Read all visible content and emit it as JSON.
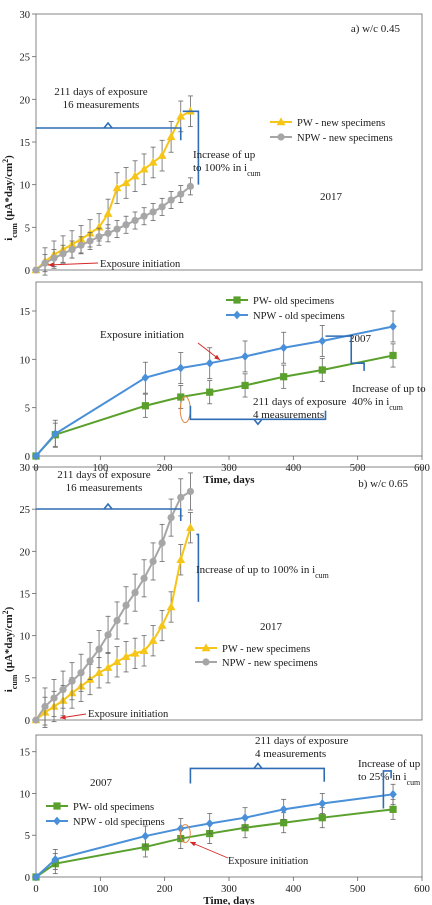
{
  "chart_data": [
    {
      "type": "line",
      "panel": "a",
      "panel_label": "a) w/c 0.45",
      "group": "2017",
      "ylabel": "icum (μA*day/cm²)",
      "ylabel_main": "i",
      "ylabel_sub": "cum",
      "ylabel_rest": " (μA*day/cm",
      "ylabel_sup": "2",
      "ylabel_end": ")",
      "xlim": [
        0,
        600
      ],
      "ylim": [
        0,
        30
      ],
      "yticks": [
        0,
        5,
        10,
        15,
        20,
        25,
        30
      ],
      "grid": false,
      "legend_position": "right",
      "series": [
        {
          "name": "PW - new specimens",
          "color": "#f5c518",
          "marker": "triangle",
          "points": [
            [
              0,
              0
            ],
            [
              14,
              1.0
            ],
            [
              28,
              1.8
            ],
            [
              42,
              2.4
            ],
            [
              56,
              3.0
            ],
            [
              70,
              3.6
            ],
            [
              84,
              4.3
            ],
            [
              98,
              5.0
            ],
            [
              112,
              6.6
            ],
            [
              126,
              9.6
            ],
            [
              140,
              10.2
            ],
            [
              154,
              11.0
            ],
            [
              168,
              11.8
            ],
            [
              182,
              12.6
            ],
            [
              196,
              13.4
            ],
            [
              210,
              15.6
            ],
            [
              225,
              18.0
            ],
            [
              240,
              18.6
            ]
          ],
          "err": [
            0,
            1.6,
            1.6,
            1.6,
            1.6,
            1.6,
            1.6,
            1.6,
            1.7,
            1.8,
            1.8,
            1.8,
            1.8,
            1.8,
            1.8,
            1.8,
            1.8,
            1.8
          ]
        },
        {
          "name": "NPW - new specimens",
          "color": "#a6a6a6",
          "marker": "circle",
          "points": [
            [
              0,
              0
            ],
            [
              14,
              0.8
            ],
            [
              28,
              1.4
            ],
            [
              42,
              1.9
            ],
            [
              56,
              2.4
            ],
            [
              70,
              2.9
            ],
            [
              84,
              3.4
            ],
            [
              98,
              3.9
            ],
            [
              112,
              4.3
            ],
            [
              126,
              4.8
            ],
            [
              140,
              5.3
            ],
            [
              154,
              5.8
            ],
            [
              168,
              6.3
            ],
            [
              182,
              6.8
            ],
            [
              196,
              7.4
            ],
            [
              210,
              8.2
            ],
            [
              225,
              8.9
            ],
            [
              240,
              9.8
            ]
          ],
          "err": [
            0,
            1.0,
            1.0,
            1.0,
            1.0,
            1.0,
            1.0,
            1.0,
            1.0,
            1.0,
            1.0,
            1.0,
            1.0,
            1.0,
            1.0,
            1.0,
            1.0,
            1.0
          ]
        }
      ],
      "annotations": [
        {
          "lines": [
            "211 days of exposure",
            "16 measurements"
          ]
        },
        {
          "lines": [
            "Increase of up",
            "to 100% in i"
          ],
          "sub": "cum"
        },
        {
          "lines": [
            "Exposure initiation"
          ]
        }
      ]
    },
    {
      "type": "line",
      "panel": "a-bottom",
      "group": "2007",
      "xlabel": "Time, days",
      "xlim": [
        0,
        600
      ],
      "ylim": [
        0,
        18
      ],
      "yticks": [
        0,
        5,
        10,
        15
      ],
      "xticks": [
        0,
        100,
        200,
        300,
        400,
        500,
        600
      ],
      "grid": false,
      "legend_position": "top-center",
      "series": [
        {
          "name": "PW- old specimens",
          "color": "#5aa02c",
          "marker": "square",
          "points": [
            [
              0,
              0
            ],
            [
              30,
              2.2
            ],
            [
              170,
              5.2
            ],
            [
              225,
              6.1
            ],
            [
              270,
              6.6
            ],
            [
              325,
              7.3
            ],
            [
              385,
              8.2
            ],
            [
              445,
              8.9
            ],
            [
              555,
              10.4
            ]
          ],
          "err": [
            0,
            1.2,
            1.2,
            1.2,
            1.2,
            1.2,
            1.2,
            1.2,
            1.2
          ]
        },
        {
          "name": "NPW - old specimens",
          "color": "#4a90d9",
          "marker": "diamond",
          "points": [
            [
              0,
              0
            ],
            [
              30,
              2.3
            ],
            [
              170,
              8.1
            ],
            [
              225,
              9.1
            ],
            [
              270,
              9.6
            ],
            [
              325,
              10.3
            ],
            [
              385,
              11.2
            ],
            [
              445,
              11.9
            ],
            [
              555,
              13.4
            ]
          ],
          "err": [
            0,
            1.4,
            1.6,
            1.6,
            1.6,
            1.6,
            1.6,
            1.6,
            1.6
          ]
        }
      ],
      "annotations": [
        {
          "lines": [
            "Exposure initiation"
          ]
        },
        {
          "lines": [
            "211 days of exposure",
            "4 measurements"
          ]
        },
        {
          "lines": [
            "Increase of up to",
            "40% in i"
          ],
          "sub": "cum"
        }
      ]
    },
    {
      "type": "line",
      "panel": "b",
      "panel_label": "b)  w/c 0.65",
      "group": "2017",
      "ylabel": "icum (μA*day/cm²)",
      "ylabel_main": "i",
      "ylabel_sub": "cum",
      "ylabel_rest": " (μA*day/cm",
      "ylabel_sup": "2",
      "ylabel_end": ")",
      "xlim": [
        0,
        600
      ],
      "ylim": [
        0,
        30
      ],
      "yticks": [
        0,
        5,
        10,
        15,
        20,
        25,
        30
      ],
      "grid": false,
      "legend_position": "right",
      "series": [
        {
          "name": "PW - new specimens",
          "color": "#f5c518",
          "marker": "triangle",
          "points": [
            [
              0,
              0
            ],
            [
              14,
              0.9
            ],
            [
              28,
              1.6
            ],
            [
              42,
              2.3
            ],
            [
              56,
              3.2
            ],
            [
              70,
              4.0
            ],
            [
              84,
              4.8
            ],
            [
              98,
              5.6
            ],
            [
              112,
              6.2
            ],
            [
              126,
              6.9
            ],
            [
              140,
              7.5
            ],
            [
              154,
              7.9
            ],
            [
              168,
              8.2
            ],
            [
              182,
              9.4
            ],
            [
              196,
              11.2
            ],
            [
              210,
              13.4
            ],
            [
              225,
              19.0
            ],
            [
              240,
              22.8
            ]
          ],
          "err": [
            0,
            1.8,
            1.8,
            1.8,
            1.8,
            1.8,
            1.8,
            1.8,
            1.8,
            1.8,
            1.8,
            1.8,
            1.8,
            1.8,
            1.8,
            1.8,
            1.8,
            1.8
          ]
        },
        {
          "name": "NPW - new specimens",
          "color": "#a6a6a6",
          "marker": "circle",
          "points": [
            [
              0,
              0
            ],
            [
              14,
              1.6
            ],
            [
              28,
              2.6
            ],
            [
              42,
              3.6
            ],
            [
              56,
              4.6
            ],
            [
              70,
              5.6
            ],
            [
              84,
              7.0
            ],
            [
              98,
              8.4
            ],
            [
              112,
              10.1
            ],
            [
              126,
              11.8
            ],
            [
              140,
              13.6
            ],
            [
              154,
              15.1
            ],
            [
              168,
              16.8
            ],
            [
              182,
              18.8
            ],
            [
              196,
              21.0
            ],
            [
              210,
              24.0
            ],
            [
              225,
              26.4
            ],
            [
              240,
              27.1
            ]
          ],
          "err": [
            0,
            2.2,
            2.2,
            2.2,
            2.2,
            2.2,
            2.2,
            2.2,
            2.2,
            2.2,
            2.2,
            2.2,
            2.2,
            2.2,
            2.2,
            2.2,
            2.2,
            2.2
          ]
        }
      ],
      "annotations": [
        {
          "lines": [
            "211 days of exposure",
            "16 measurements"
          ]
        },
        {
          "lines": [
            "Increase of up to 100% in i"
          ],
          "sub": "cum"
        },
        {
          "lines": [
            "Exposure initiation"
          ]
        }
      ]
    },
    {
      "type": "line",
      "panel": "b-bottom",
      "group": "2007",
      "xlabel": "Time, days",
      "xlim": [
        0,
        600
      ],
      "ylim": [
        0,
        17
      ],
      "yticks": [
        0,
        5,
        10,
        15
      ],
      "xticks": [
        0,
        100,
        200,
        300,
        400,
        500,
        600
      ],
      "grid": false,
      "legend_position": "left",
      "series": [
        {
          "name": "PW- old specimens",
          "color": "#5aa02c",
          "marker": "square",
          "points": [
            [
              0,
              0
            ],
            [
              30,
              1.6
            ],
            [
              170,
              3.6
            ],
            [
              225,
              4.6
            ],
            [
              270,
              5.2
            ],
            [
              325,
              5.9
            ],
            [
              385,
              6.5
            ],
            [
              445,
              7.1
            ],
            [
              555,
              8.1
            ]
          ],
          "err": [
            0,
            1.2,
            1.2,
            1.2,
            1.2,
            1.2,
            1.2,
            1.2,
            1.2
          ]
        },
        {
          "name": "NPW - old specimens",
          "color": "#4a90d9",
          "marker": "diamond",
          "points": [
            [
              0,
              0
            ],
            [
              30,
              2.1
            ],
            [
              170,
              4.9
            ],
            [
              225,
              5.8
            ],
            [
              270,
              6.4
            ],
            [
              325,
              7.1
            ],
            [
              385,
              8.1
            ],
            [
              445,
              8.8
            ],
            [
              555,
              9.9
            ]
          ],
          "err": [
            0,
            1.2,
            1.2,
            1.2,
            1.2,
            1.2,
            1.2,
            1.2,
            1.2
          ]
        }
      ],
      "annotations": [
        {
          "lines": [
            "211 days of exposure",
            "4 measurements"
          ]
        },
        {
          "lines": [
            "Increase of up",
            "to 25% in i"
          ],
          "sub": "cum"
        },
        {
          "lines": [
            "Exposure initiation"
          ]
        }
      ]
    }
  ],
  "colors": {
    "axis": "#666666",
    "text": "#1a1a1a",
    "bracket": "#2e6db4",
    "arrow": "#d62728",
    "errorbar": "#666666"
  }
}
